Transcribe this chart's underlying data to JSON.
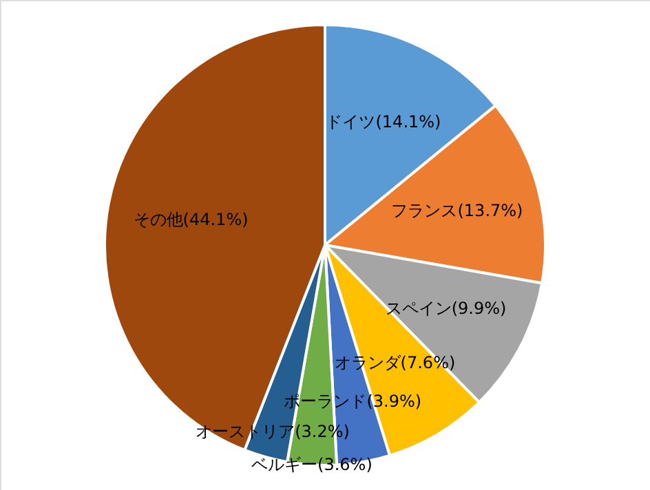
{
  "chart_data": {
    "type": "pie",
    "categories": [
      "ドイツ",
      "フランス",
      "スペイン",
      "オランダ",
      "ポーランド",
      "ベルギー",
      "オーストリア",
      "その他"
    ],
    "values": [
      14.1,
      13.7,
      9.9,
      7.6,
      3.9,
      3.6,
      3.2,
      44.1
    ],
    "colors": [
      "#5b9bd5",
      "#ed7d31",
      "#a5a5a5",
      "#ffc000",
      "#4472c4",
      "#70ad47",
      "#255e91",
      "#9e480e"
    ],
    "value_labels": [
      "(14.1%)",
      "(13.7%)",
      "(9.9%)",
      "(7.6%)",
      "(3.9%)",
      "(3.6%)",
      "(3.2%)",
      "(44.1%)"
    ]
  }
}
